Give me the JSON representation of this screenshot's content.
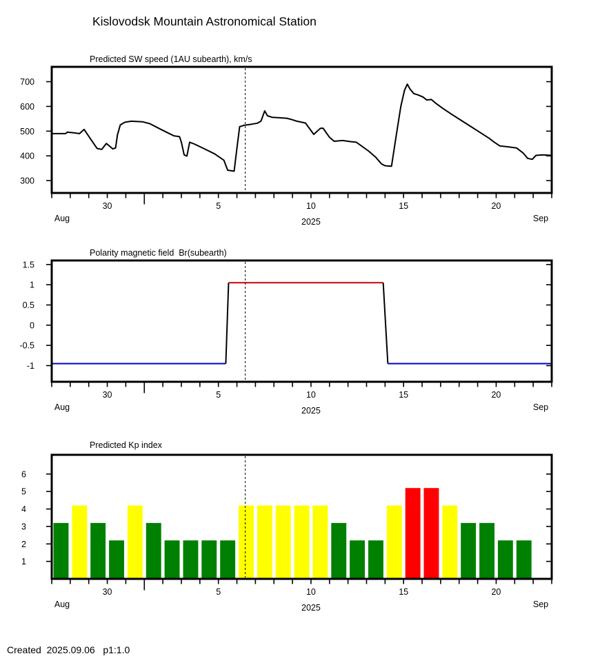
{
  "page": {
    "title": "Kislovodsk Mountain Astronomical Station",
    "footer": "Created  2025.09.06   p1:1.0"
  },
  "colors": {
    "background": "#ffffff",
    "text": "#000000",
    "frame": "#000000",
    "now_line": "#000000",
    "speed_line": "#000000",
    "polarity_negative": "#0000cc",
    "polarity_positive": "#cc0000",
    "polarity_transition": "#000000",
    "kp_green": "#008000",
    "kp_yellow": "#ffff00",
    "kp_red": "#ff0000"
  },
  "xaxis": {
    "day_min": 0,
    "day_max": 27,
    "epoch": "day 0 = Aug 27, 2025",
    "start_month_label": "Aug",
    "end_month_label": "Sep",
    "year_label": "2025",
    "labeled_days": [
      {
        "day": 3,
        "label": "30"
      },
      {
        "day": 9,
        "label": "5"
      },
      {
        "day": 14,
        "label": "10"
      },
      {
        "day": 19,
        "label": "15"
      },
      {
        "day": 24,
        "label": "20"
      }
    ],
    "month_boundary_day": 5,
    "now_day": 10.45
  },
  "chart_data": [
    {
      "type": "line",
      "title": "Predicted SW speed (1AU subearth), km/s",
      "ylabel": "km/s",
      "ylim": [
        250,
        760
      ],
      "yticks": [
        300,
        400,
        500,
        600,
        700
      ],
      "ytick_labels": [
        "300",
        "400",
        "500",
        "600",
        "700"
      ],
      "points": [
        [
          0,
          490
        ],
        [
          0.75,
          490
        ],
        [
          0.85,
          496
        ],
        [
          1.2,
          493
        ],
        [
          1.5,
          490
        ],
        [
          1.75,
          507
        ],
        [
          2.1,
          468
        ],
        [
          2.45,
          430
        ],
        [
          2.7,
          426
        ],
        [
          2.95,
          450
        ],
        [
          3.1,
          441
        ],
        [
          3.3,
          428
        ],
        [
          3.45,
          432
        ],
        [
          3.55,
          485
        ],
        [
          3.7,
          525
        ],
        [
          3.95,
          536
        ],
        [
          4.3,
          540
        ],
        [
          4.9,
          538
        ],
        [
          5.3,
          530
        ],
        [
          5.9,
          507
        ],
        [
          6.3,
          492
        ],
        [
          6.6,
          481
        ],
        [
          6.9,
          478
        ],
        [
          7.0,
          455
        ],
        [
          7.15,
          404
        ],
        [
          7.3,
          399
        ],
        [
          7.45,
          455
        ],
        [
          7.7,
          448
        ],
        [
          8.2,
          430
        ],
        [
          8.8,
          408
        ],
        [
          9.3,
          382
        ],
        [
          9.5,
          342
        ],
        [
          9.85,
          338
        ],
        [
          10.0,
          430
        ],
        [
          10.15,
          518
        ],
        [
          10.4,
          524
        ],
        [
          10.8,
          528
        ],
        [
          11.1,
          532
        ],
        [
          11.3,
          540
        ],
        [
          11.5,
          582
        ],
        [
          11.65,
          562
        ],
        [
          11.9,
          556
        ],
        [
          12.3,
          554
        ],
        [
          12.7,
          552
        ],
        [
          13.0,
          546
        ],
        [
          13.2,
          541
        ],
        [
          13.7,
          533
        ],
        [
          14.15,
          487
        ],
        [
          14.5,
          511
        ],
        [
          14.65,
          512
        ],
        [
          15.0,
          475
        ],
        [
          15.25,
          459
        ],
        [
          15.7,
          462
        ],
        [
          16.1,
          458
        ],
        [
          16.45,
          455
        ],
        [
          17.1,
          420
        ],
        [
          17.5,
          394
        ],
        [
          17.8,
          368
        ],
        [
          18.0,
          360
        ],
        [
          18.35,
          358
        ],
        [
          18.6,
          480
        ],
        [
          18.85,
          600
        ],
        [
          19.05,
          665
        ],
        [
          19.2,
          690
        ],
        [
          19.35,
          670
        ],
        [
          19.55,
          652
        ],
        [
          19.8,
          646
        ],
        [
          20.05,
          638
        ],
        [
          20.25,
          626
        ],
        [
          20.5,
          628
        ],
        [
          20.75,
          612
        ],
        [
          21.1,
          593
        ],
        [
          21.6,
          568
        ],
        [
          22.1,
          544
        ],
        [
          22.6,
          520
        ],
        [
          23.1,
          496
        ],
        [
          23.6,
          472
        ],
        [
          23.9,
          455
        ],
        [
          24.2,
          440
        ],
        [
          24.7,
          436
        ],
        [
          25.1,
          432
        ],
        [
          25.45,
          412
        ],
        [
          25.7,
          390
        ],
        [
          25.95,
          386
        ],
        [
          26.15,
          402
        ],
        [
          26.5,
          404
        ],
        [
          27,
          402
        ]
      ]
    },
    {
      "type": "line",
      "subtype": "polarity-step",
      "title": "Polarity magnetic field  Br(subearth)",
      "ylim": [
        -1.4,
        1.6
      ],
      "yticks": [
        -1,
        -0.5,
        0,
        0.5,
        1,
        1.5
      ],
      "ytick_labels": [
        "-1",
        "-0.5",
        "0",
        "0.5",
        "1",
        "1.5"
      ],
      "segments": [
        {
          "polarity": "negative",
          "from_day": 0,
          "to_day": 9.4,
          "value": -0.95
        },
        {
          "polarity": "positive",
          "from_day": 9.55,
          "to_day": 17.9,
          "value": 1.05
        },
        {
          "polarity": "negative",
          "from_day": 18.15,
          "to_day": 27,
          "value": -0.95
        }
      ]
    },
    {
      "type": "bar",
      "title": "Predicted Kp index",
      "ylim": [
        0,
        7.1
      ],
      "yticks": [
        1,
        2,
        3,
        4,
        5,
        6
      ],
      "ytick_labels": [
        "1",
        "2",
        "3",
        "4",
        "5",
        "6"
      ],
      "start_day": 0,
      "categories": [
        "Aug 27",
        "Aug 28",
        "Aug 29",
        "Aug 30",
        "Aug 31",
        "Sep 1",
        "Sep 2",
        "Sep 3",
        "Sep 4",
        "Sep 5",
        "Sep 6",
        "Sep 7",
        "Sep 8",
        "Sep 9",
        "Sep 10",
        "Sep 11",
        "Sep 12",
        "Sep 13",
        "Sep 14",
        "Sep 15",
        "Sep 16",
        "Sep 17",
        "Sep 18",
        "Sep 19",
        "Sep 20",
        "Sep 21"
      ],
      "values": [
        3.2,
        4.2,
        3.2,
        2.2,
        4.2,
        3.2,
        2.2,
        2.2,
        2.2,
        2.2,
        4.2,
        4.2,
        4.2,
        4.2,
        4.2,
        3.2,
        2.2,
        2.2,
        4.2,
        5.2,
        5.2,
        4.2,
        3.2,
        3.2,
        2.2,
        2.2
      ],
      "levels": [
        "green",
        "yellow",
        "green",
        "green",
        "yellow",
        "green",
        "green",
        "green",
        "green",
        "green",
        "yellow",
        "yellow",
        "yellow",
        "yellow",
        "yellow",
        "green",
        "green",
        "green",
        "yellow",
        "red",
        "red",
        "yellow",
        "green",
        "green",
        "green",
        "green"
      ]
    }
  ]
}
